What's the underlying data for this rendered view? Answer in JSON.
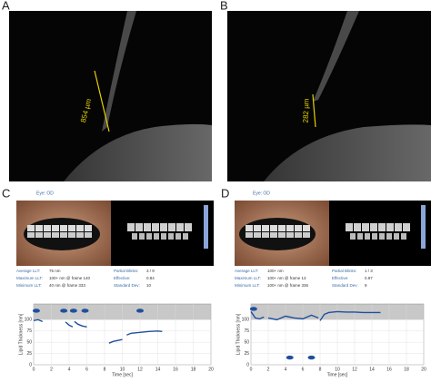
{
  "panels": [
    {
      "label": "A",
      "measurement": "854 µm"
    },
    {
      "label": "B",
      "measurement": "282 µm"
    },
    {
      "label": "C",
      "eye": "Eye: OD",
      "stats": [
        [
          "Average LLT:",
          "75 nm"
        ],
        [
          "Maximum LLT:",
          "100+ nm @ frame 140"
        ],
        [
          "Minimum LLT:",
          "40 nm @ frame 333"
        ],
        [
          "Partial Blinks:",
          "3 / 9"
        ],
        [
          "Effective:",
          "0.84"
        ],
        [
          "Standard Dev:",
          "10"
        ]
      ],
      "plot": {
        "y_label": "Lipid Thickness [nm]",
        "x_label": "Time [sec]",
        "xlim": [
          0,
          20
        ],
        "ylim": [
          0,
          135
        ],
        "xticks": [
          0,
          2,
          4,
          6,
          8,
          10,
          12,
          14,
          16,
          18,
          20
        ],
        "yticks": [
          0,
          25,
          50,
          75,
          100
        ],
        "markers": {
          "x": [
            0.3,
            3.4,
            4.5,
            5.8,
            12
          ],
          "values": [
            120,
            120,
            120,
            120,
            120
          ]
        },
        "line": {
          "x": [
            0,
            0.5,
            1,
            null,
            3.6,
            4,
            4.4,
            null,
            4.6,
            5,
            5.5,
            6,
            null,
            8.5,
            9,
            9.5,
            10,
            null,
            10.5,
            11,
            12,
            13,
            14,
            14.5
          ],
          "values": [
            98,
            100,
            96,
            null,
            95,
            88,
            84,
            null,
            96,
            90,
            86,
            84,
            null,
            48,
            52,
            54,
            56,
            null,
            66,
            70,
            72,
            74,
            75,
            74
          ]
        }
      }
    },
    {
      "label": "D",
      "eye": "Eye: OD",
      "stats": [
        [
          "Average LLT:",
          "100+ nm"
        ],
        [
          "Maximum LLT:",
          "100+ nm @ frame 13"
        ],
        [
          "Minimum LLT:",
          "100+ nm @ frame 336"
        ],
        [
          "Partial Blinks:",
          "1 / 3"
        ],
        [
          "Effective:",
          "0.97"
        ],
        [
          "Standard Dev:",
          "9"
        ]
      ],
      "plot": {
        "y_label": "Lipid Thickness [nm]",
        "x_label": "Time [sec]",
        "xlim": [
          0,
          20
        ],
        "ylim": [
          0,
          135
        ],
        "xticks": [
          0,
          2,
          4,
          6,
          8,
          10,
          12,
          14,
          16,
          18,
          20
        ],
        "yticks": [
          0,
          25,
          50,
          75,
          100
        ],
        "markers": {
          "x": [
            0.3,
            4.5,
            7
          ],
          "values": [
            124,
            16,
            16
          ]
        },
        "line": {
          "x": [
            0,
            0.5,
            1,
            1.5,
            null,
            2,
            3,
            4,
            5,
            6,
            7,
            7.8,
            null,
            8,
            8.5,
            9,
            10,
            11,
            12,
            13,
            14,
            15
          ],
          "values": [
            118,
            104,
            102,
            106,
            null,
            104,
            100,
            108,
            104,
            102,
            110,
            104,
            null,
            98,
            112,
            116,
            118,
            117,
            117,
            116,
            116,
            116
          ]
        }
      }
    }
  ]
}
